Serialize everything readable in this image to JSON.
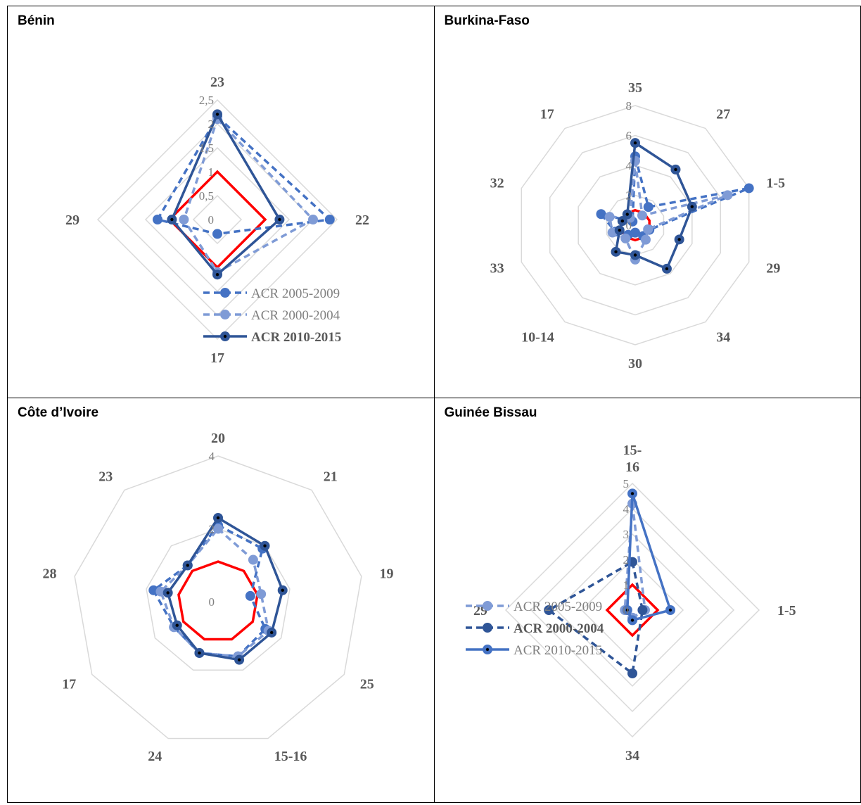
{
  "chart_data": [
    {
      "type": "radar",
      "title": "Bénin",
      "categories": [
        "23",
        "22",
        "17",
        "29"
      ],
      "rmax": 2.5,
      "ticks": [
        "0",
        "0,5",
        "1",
        "1,5",
        "2",
        "2,5"
      ],
      "tick_values": [
        0,
        0.5,
        1,
        1.5,
        2,
        2.5
      ],
      "threshold": 1,
      "series": [
        {
          "name": "ACR 2005-2009",
          "values": [
            2.15,
            2.35,
            0.3,
            1.25
          ]
        },
        {
          "name": "ACR 2000-2004",
          "values": [
            2.1,
            2.0,
            1.1,
            0.7
          ]
        },
        {
          "name": "ACR 2010-2015",
          "values": [
            2.2,
            1.3,
            1.15,
            0.95
          ]
        }
      ]
    },
    {
      "type": "radar",
      "title": "Burkina-Faso",
      "categories": [
        "35",
        "27",
        "1-5",
        "29",
        "34",
        "30",
        "10-14",
        "33",
        "32",
        "17"
      ],
      "rmax": 8,
      "ticks": [
        "0",
        "2",
        "4",
        "6",
        "8"
      ],
      "tick_values": [
        0,
        2,
        4,
        6,
        8
      ],
      "threshold": 1,
      "series": [
        {
          "name": "ACR 2005-2009",
          "values": [
            4.6,
            1.5,
            8.0,
            1.0,
            0.9,
            0.5,
            0.8,
            1.4,
            2.4,
            0.3
          ]
        },
        {
          "name": "ACR 2000-2004",
          "values": [
            4.3,
            0.8,
            6.5,
            0.9,
            1.2,
            2.3,
            1.1,
            1.6,
            1.8,
            0.6
          ]
        },
        {
          "name": "ACR 2010-2015",
          "values": [
            5.5,
            4.6,
            4.0,
            3.1,
            3.6,
            2.0,
            2.2,
            1.1,
            0.9,
            0.9
          ]
        }
      ]
    },
    {
      "type": "radar",
      "title": "Côte d’Ivoire",
      "categories": [
        "20",
        "21",
        "19",
        "25",
        "15-16",
        "24",
        "17",
        "28",
        "23"
      ],
      "rmax": 4,
      "ticks": [
        "0",
        "2",
        "4"
      ],
      "tick_values": [
        0,
        2,
        4
      ],
      "threshold": 1.1,
      "series": [
        {
          "name": "",
          "values": [
            2.1,
            1.9,
            0.9,
            1.5,
            1.6,
            1.5,
            1.4,
            1.8,
            1.3
          ]
        },
        {
          "name": "",
          "values": [
            2.0,
            1.5,
            1.2,
            1.6,
            1.6,
            1.5,
            1.4,
            1.6,
            1.3
          ]
        },
        {
          "name": "",
          "values": [
            2.3,
            2.0,
            1.8,
            1.7,
            1.7,
            1.5,
            1.3,
            1.4,
            1.3
          ]
        }
      ]
    },
    {
      "type": "radar",
      "title": "Guinée Bissau",
      "categories": [
        "15-\n16",
        "1-5",
        "34",
        "29"
      ],
      "rmax": 5,
      "ticks": [
        "0",
        "1",
        "2",
        "3",
        "4",
        "5"
      ],
      "tick_values": [
        0,
        1,
        2,
        3,
        4,
        5
      ],
      "threshold": 1,
      "series": [
        {
          "name": "ACR 2005-2009",
          "values": [
            4.2,
            0.5,
            0.3,
            0.3
          ]
        },
        {
          "name": "ACR 2000-2004",
          "values": [
            1.9,
            0.4,
            2.5,
            3.3
          ]
        },
        {
          "name": "ACR 2010-2015",
          "values": [
            4.6,
            1.5,
            0.4,
            0.2
          ]
        }
      ]
    }
  ],
  "legend_labels": {
    "benin": [
      "ACR 2005-2009",
      "ACR 2000-2004",
      "ACR 2010-2015"
    ],
    "guinee": [
      "ACR 2005-2009",
      "ACR 2000-2004",
      "ACR 2010-2015"
    ]
  },
  "colors": {
    "series": [
      "#4472c4",
      "#7f9bd6",
      "#2f5597"
    ],
    "guinee_series": [
      "#7f9bd6",
      "#2f5597",
      "#4472c4"
    ],
    "threshold": "#ff0000",
    "grid": "#d9d9d9"
  }
}
